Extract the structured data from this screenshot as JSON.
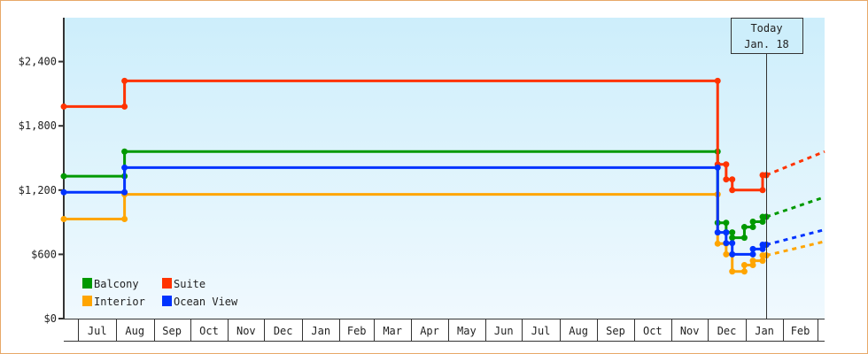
{
  "chart_data": {
    "type": "line",
    "step": true,
    "today_marker": {
      "line1": "Today",
      "line2": "Jan. 18",
      "date": "Jan 18"
    },
    "x_domain": [
      "Jun 19",
      "Mar 7"
    ],
    "x_axis": {
      "tick_labels": [
        "",
        "Jul",
        "Aug",
        "Sep",
        "Oct",
        "Nov",
        "Dec",
        "Jan",
        "Feb",
        "Mar",
        "Apr",
        "May",
        "Jun",
        "Jul",
        "Aug",
        "Sep",
        "Oct",
        "Nov",
        "Dec",
        "Jan",
        "Feb",
        ""
      ]
    },
    "y_axis": {
      "ylim": [
        0,
        2810
      ],
      "ticks": [
        0,
        600,
        1200,
        1800,
        2400
      ],
      "tick_labels": [
        "$0",
        "$600",
        "$1,200",
        "$1,800",
        "$2,400"
      ]
    },
    "background_gradient": [
      "#cdeefb",
      "#f0f9fe"
    ],
    "legend": {
      "placement": "bottom-left"
    },
    "series": [
      {
        "name": "Balcony",
        "color": "#009900",
        "points": [
          [
            "Jun 19",
            1330
          ],
          [
            "Aug 8",
            1560
          ],
          [
            "Dec 9",
            895
          ],
          [
            "Dec 16",
            805
          ],
          [
            "Dec 21",
            755
          ],
          [
            "Dec 31",
            855
          ],
          [
            "Jan 7",
            905
          ],
          [
            "Jan 15",
            950
          ],
          [
            "Jan 18",
            950
          ]
        ],
        "forecast": [
          [
            "Jan 18",
            950
          ],
          [
            "Mar 7",
            1135
          ]
        ]
      },
      {
        "name": "Suite",
        "color": "#ff3300",
        "points": [
          [
            "Jun 19",
            1980
          ],
          [
            "Aug 8",
            2220
          ],
          [
            "Dec 9",
            1440
          ],
          [
            "Dec 16",
            1300
          ],
          [
            "Dec 21",
            1200
          ],
          [
            "Jan 15",
            1340
          ],
          [
            "Jan 18",
            1340
          ]
        ],
        "forecast": [
          [
            "Jan 18",
            1340
          ],
          [
            "Mar 7",
            1560
          ]
        ]
      },
      {
        "name": "Interior",
        "color": "#ffa500",
        "points": [
          [
            "Jun 19",
            930
          ],
          [
            "Aug 8",
            1160
          ],
          [
            "Dec 9",
            700
          ],
          [
            "Dec 16",
            600
          ],
          [
            "Dec 21",
            440
          ],
          [
            "Dec 31",
            500
          ],
          [
            "Jan 7",
            540
          ],
          [
            "Jan 15",
            590
          ],
          [
            "Jan 18",
            590
          ]
        ],
        "forecast": [
          [
            "Jan 18",
            590
          ],
          [
            "Mar 7",
            720
          ]
        ]
      },
      {
        "name": "Ocean View",
        "color": "#0033ff",
        "points": [
          [
            "Jun 19",
            1180
          ],
          [
            "Aug 8",
            1410
          ],
          [
            "Dec 9",
            805
          ],
          [
            "Dec 16",
            705
          ],
          [
            "Dec 21",
            600
          ],
          [
            "Jan 7",
            650
          ],
          [
            "Jan 15",
            690
          ],
          [
            "Jan 18",
            690
          ]
        ],
        "forecast": [
          [
            "Jan 18",
            690
          ],
          [
            "Mar 7",
            830
          ]
        ]
      }
    ]
  }
}
